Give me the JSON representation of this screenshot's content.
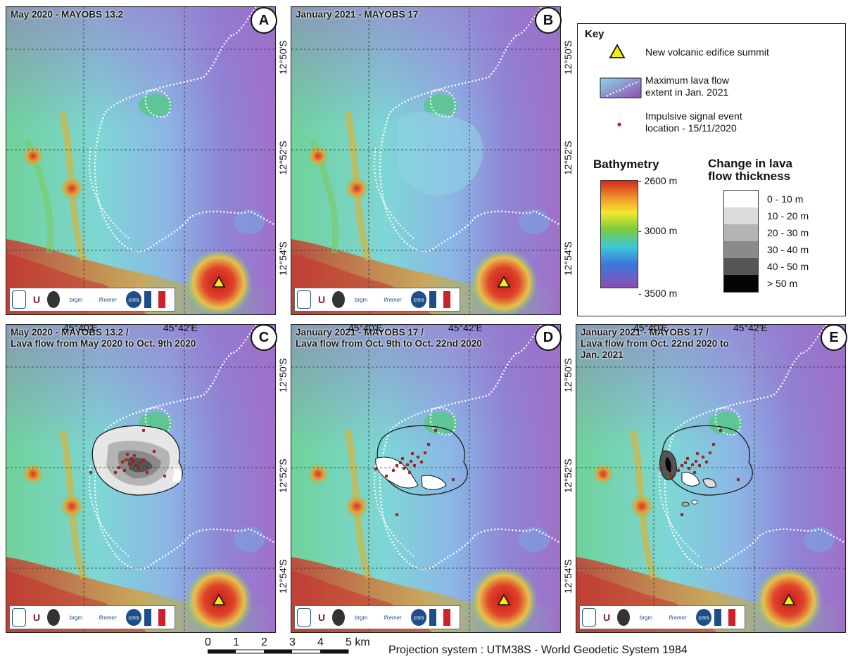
{
  "panels": [
    {
      "letter": "A",
      "title_l1": "May 2020 - MAYOBS 13.2",
      "title_l2": ""
    },
    {
      "letter": "B",
      "title_l1": "January 2021 - MAYOBS 17",
      "title_l2": ""
    },
    {
      "letter": "C",
      "title_l1": "May 2020 - MAYOBS 13.2 /",
      "title_l2": "Lava flow from May 2020 to Oct. 9th 2020"
    },
    {
      "letter": "D",
      "title_l1": "January 2021 - MAYOBS 17 /",
      "title_l2": "Lava flow from Oct. 9th to Oct. 22nd 2020"
    },
    {
      "letter": "E",
      "title_l1": "January 2021 - MAYOBS 17 /",
      "title_l2": "Lava flow from Oct. 22nd 2020 to",
      "title_l3": "Jan. 2021"
    }
  ],
  "axes": {
    "lat": [
      "12°50'S",
      "12°52'S",
      "12°54'S"
    ],
    "lon": [
      "45°40'E",
      "45°42'E"
    ]
  },
  "logos": [
    "brgm",
    "Ifremer",
    "cnrs"
  ],
  "key": {
    "title": "Key",
    "summit": "New volcanic edifice summit",
    "extent_l1": "Maximum lava flow",
    "extent_l2": "extent in Jan. 2021",
    "event_l1": "Impulsive signal event",
    "event_l2": "location - 15/11/2020",
    "bathy_title": "Bathymetry",
    "bathy_ticks": [
      "- 2600 m",
      "- 3000 m",
      "- 3500 m"
    ],
    "change_title_l1": "Change in lava",
    "change_title_l2": "flow thickness",
    "classes": [
      {
        "label": "0 - 10 m",
        "color": "#ffffff"
      },
      {
        "label": "10 - 20 m",
        "color": "#dcdcdc"
      },
      {
        "label": "20 - 30 m",
        "color": "#b4b4b4"
      },
      {
        "label": "30 - 40 m",
        "color": "#8a8a8a"
      },
      {
        "label": "40 - 50 m",
        "color": "#555555"
      },
      {
        "label": "> 50 m",
        "color": "#050505"
      }
    ]
  },
  "scale": {
    "ticks": [
      "0",
      "1",
      "2",
      "3",
      "4",
      "5 km"
    ]
  },
  "projection": "Projection system : UTM38S - World Geodetic System 1984",
  "colors": {
    "shallow": "#d7281e",
    "mid": "#3fc0d8",
    "deep": "#8c55b0",
    "summit": "#f6ec12",
    "event": "#c0241e"
  }
}
